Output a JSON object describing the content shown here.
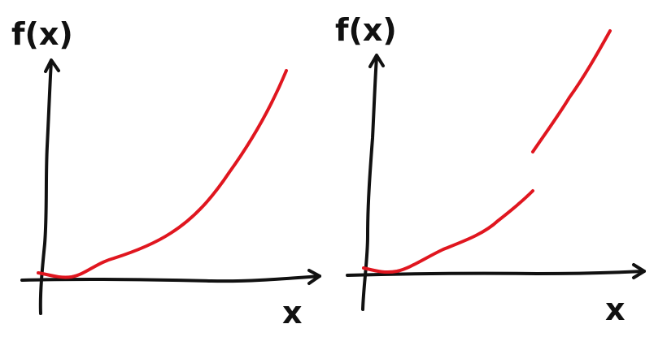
{
  "colors": {
    "background": "#ffffff",
    "axis": "#111111",
    "curve": "#e0161f"
  },
  "panels": [
    {
      "id": "left",
      "y_axis_label": "f(x)",
      "x_axis_label": "x",
      "curve": "continuous"
    },
    {
      "id": "right",
      "y_axis_label": "f(x)",
      "x_axis_label": "x",
      "curve": "jump-discontinuity"
    }
  ]
}
